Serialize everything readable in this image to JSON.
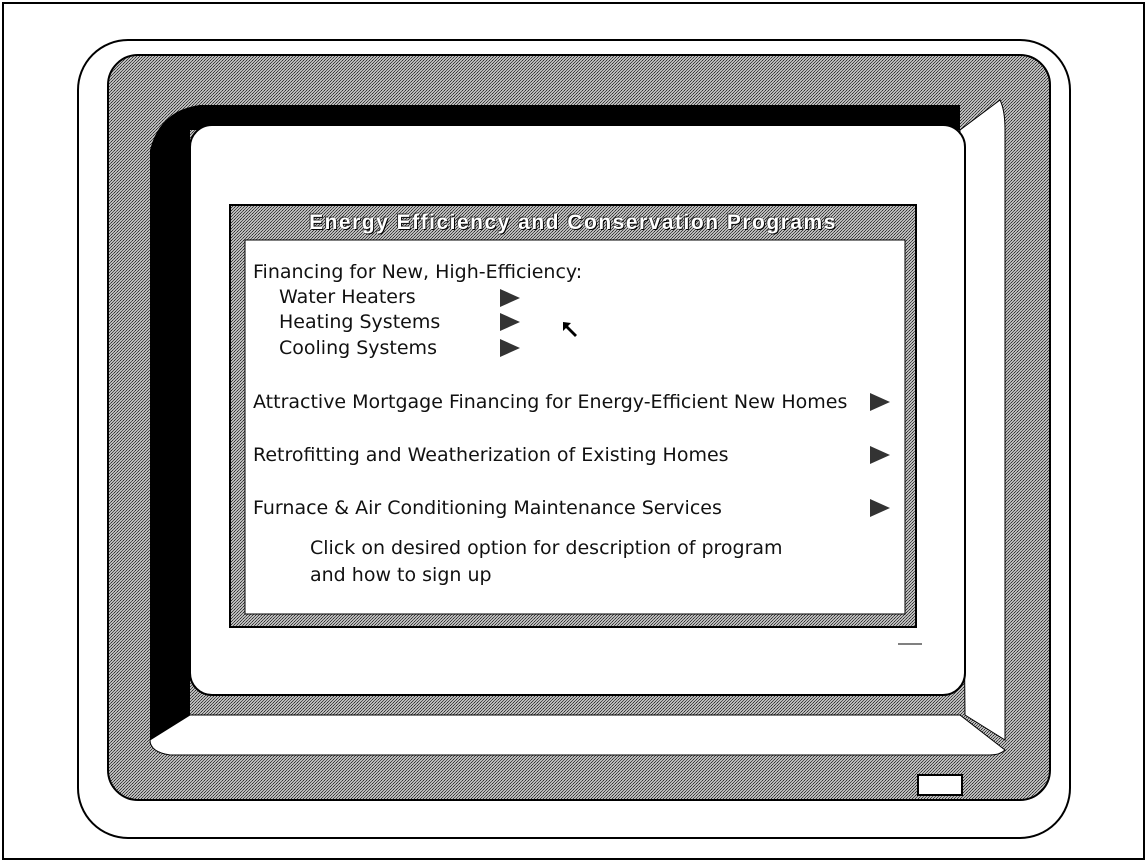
{
  "window": {
    "title": "Energy Efficiency and Conservation Programs"
  },
  "financing": {
    "heading": "Financing for New, High-Efficiency:",
    "items": [
      "Water Heaters",
      "Heating Systems",
      "Cooling Systems"
    ]
  },
  "options": [
    "Attractive Mortgage Financing for Energy-Efficient New Homes",
    "Retrofitting and Weatherization of Existing Homes",
    "Furnace & Air Conditioning Maintenance Services"
  ],
  "instruction": [
    "Click on desired option for description of program",
    "and how to sign up"
  ]
}
